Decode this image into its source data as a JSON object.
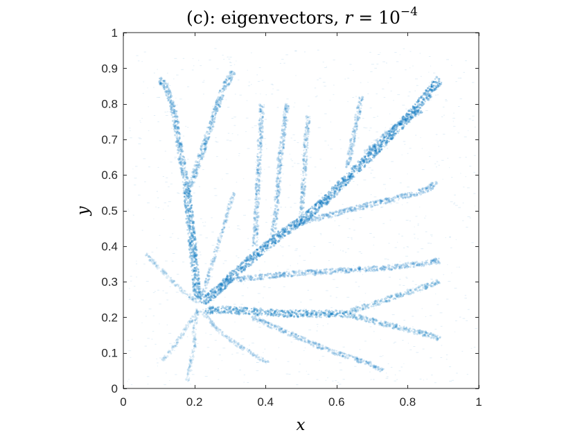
{
  "chart_data": {
    "type": "scatter",
    "title": "(c): eigenvectors, r = 10^-4",
    "title_parts": {
      "prefix": "(c): eigenvectors, ",
      "var": "r",
      "eq": " = 10",
      "exp": "−4"
    },
    "xlabel": "x",
    "ylabel": "y",
    "xlim": [
      0,
      1
    ],
    "ylim": [
      0,
      1
    ],
    "xticks": [
      0,
      0.2,
      0.4,
      0.6,
      0.8,
      1
    ],
    "yticks": [
      0,
      0.1,
      0.2,
      0.3,
      0.4,
      0.5,
      0.6,
      0.7,
      0.8,
      0.9,
      1
    ],
    "xtick_labels": [
      "0",
      "0.2",
      "0.4",
      "0.6",
      "0.8",
      "1"
    ],
    "ytick_labels": [
      "0",
      "0.1",
      "0.2",
      "0.3",
      "0.4",
      "0.5",
      "0.6",
      "0.7",
      "0.8",
      "0.9",
      "1"
    ],
    "grid": false,
    "box": true,
    "marker_color": "#0072bd",
    "series": [
      {
        "x": [
          0.22,
          0.27,
          0.32,
          0.38,
          0.44,
          0.5,
          0.56,
          0.62,
          0.68,
          0.74,
          0.8,
          0.86,
          0.89
        ],
        "y": [
          0.24,
          0.28,
          0.33,
          0.38,
          0.43,
          0.47,
          0.52,
          0.58,
          0.64,
          0.7,
          0.76,
          0.83,
          0.87
        ],
        "weight": 1.0
      },
      {
        "x": [
          0.21,
          0.2,
          0.19,
          0.18
        ],
        "y": [
          0.25,
          0.35,
          0.45,
          0.55
        ],
        "weight": 0.85
      },
      {
        "x": [
          0.18,
          0.17,
          0.16,
          0.15,
          0.14,
          0.12,
          0.1
        ],
        "y": [
          0.55,
          0.61,
          0.67,
          0.73,
          0.79,
          0.85,
          0.87
        ],
        "weight": 0.6
      },
      {
        "x": [
          0.18,
          0.2,
          0.22,
          0.24,
          0.26,
          0.28,
          0.31
        ],
        "y": [
          0.55,
          0.6,
          0.66,
          0.72,
          0.78,
          0.84,
          0.89
        ],
        "weight": 0.55
      },
      {
        "x": [
          0.23,
          0.3,
          0.38,
          0.46,
          0.54,
          0.62
        ],
        "y": [
          0.22,
          0.22,
          0.215,
          0.21,
          0.21,
          0.21
        ],
        "weight": 0.8
      },
      {
        "x": [
          0.62,
          0.68,
          0.74,
          0.8,
          0.86,
          0.89
        ],
        "y": [
          0.21,
          0.23,
          0.25,
          0.27,
          0.29,
          0.3
        ],
        "weight": 0.45
      },
      {
        "x": [
          0.62,
          0.68,
          0.74,
          0.8,
          0.86,
          0.89
        ],
        "y": [
          0.21,
          0.195,
          0.18,
          0.165,
          0.15,
          0.14
        ],
        "weight": 0.45
      },
      {
        "x": [
          0.28,
          0.36,
          0.44,
          0.52,
          0.6,
          0.68,
          0.76,
          0.84,
          0.89
        ],
        "y": [
          0.3,
          0.31,
          0.32,
          0.325,
          0.33,
          0.335,
          0.34,
          0.35,
          0.36
        ],
        "weight": 0.5
      },
      {
        "x": [
          0.47,
          0.55,
          0.63,
          0.71,
          0.79,
          0.86,
          0.88
        ],
        "y": [
          0.46,
          0.48,
          0.5,
          0.52,
          0.54,
          0.56,
          0.58
        ],
        "weight": 0.5
      },
      {
        "x": [
          0.37,
          0.375,
          0.38,
          0.385,
          0.39
        ],
        "y": [
          0.4,
          0.5,
          0.6,
          0.7,
          0.8
        ],
        "weight": 0.4
      },
      {
        "x": [
          0.42,
          0.43,
          0.435,
          0.44,
          0.45,
          0.46
        ],
        "y": [
          0.43,
          0.5,
          0.57,
          0.64,
          0.71,
          0.8
        ],
        "weight": 0.4
      },
      {
        "x": [
          0.5,
          0.505,
          0.51,
          0.515,
          0.52
        ],
        "y": [
          0.48,
          0.55,
          0.62,
          0.7,
          0.77
        ],
        "weight": 0.35
      },
      {
        "x": [
          0.63,
          0.64,
          0.65,
          0.66,
          0.67
        ],
        "y": [
          0.62,
          0.67,
          0.72,
          0.77,
          0.82
        ],
        "weight": 0.4
      },
      {
        "x": [
          0.68,
          0.72,
          0.76,
          0.8,
          0.84
        ],
        "y": [
          0.66,
          0.7,
          0.73,
          0.76,
          0.78
        ],
        "weight": 0.4
      },
      {
        "x": [
          0.22,
          0.25,
          0.28,
          0.31
        ],
        "y": [
          0.25,
          0.35,
          0.45,
          0.55
        ],
        "weight": 0.25
      },
      {
        "x": [
          0.22,
          0.26,
          0.31,
          0.36,
          0.41
        ],
        "y": [
          0.22,
          0.17,
          0.13,
          0.1,
          0.07
        ],
        "weight": 0.25
      },
      {
        "x": [
          0.36,
          0.43,
          0.5,
          0.57,
          0.63,
          0.69,
          0.73
        ],
        "y": [
          0.2,
          0.17,
          0.14,
          0.11,
          0.09,
          0.07,
          0.05
        ],
        "weight": 0.4
      },
      {
        "x": [
          0.21,
          0.19,
          0.17,
          0.15,
          0.13,
          0.11
        ],
        "y": [
          0.22,
          0.19,
          0.16,
          0.13,
          0.1,
          0.08
        ],
        "weight": 0.2
      },
      {
        "x": [
          0.21,
          0.16,
          0.11,
          0.06
        ],
        "y": [
          0.24,
          0.28,
          0.33,
          0.38
        ],
        "weight": 0.2
      },
      {
        "x": [
          0.21,
          0.2,
          0.2,
          0.19,
          0.18
        ],
        "y": [
          0.22,
          0.17,
          0.12,
          0.07,
          0.02
        ],
        "weight": 0.18
      }
    ]
  }
}
